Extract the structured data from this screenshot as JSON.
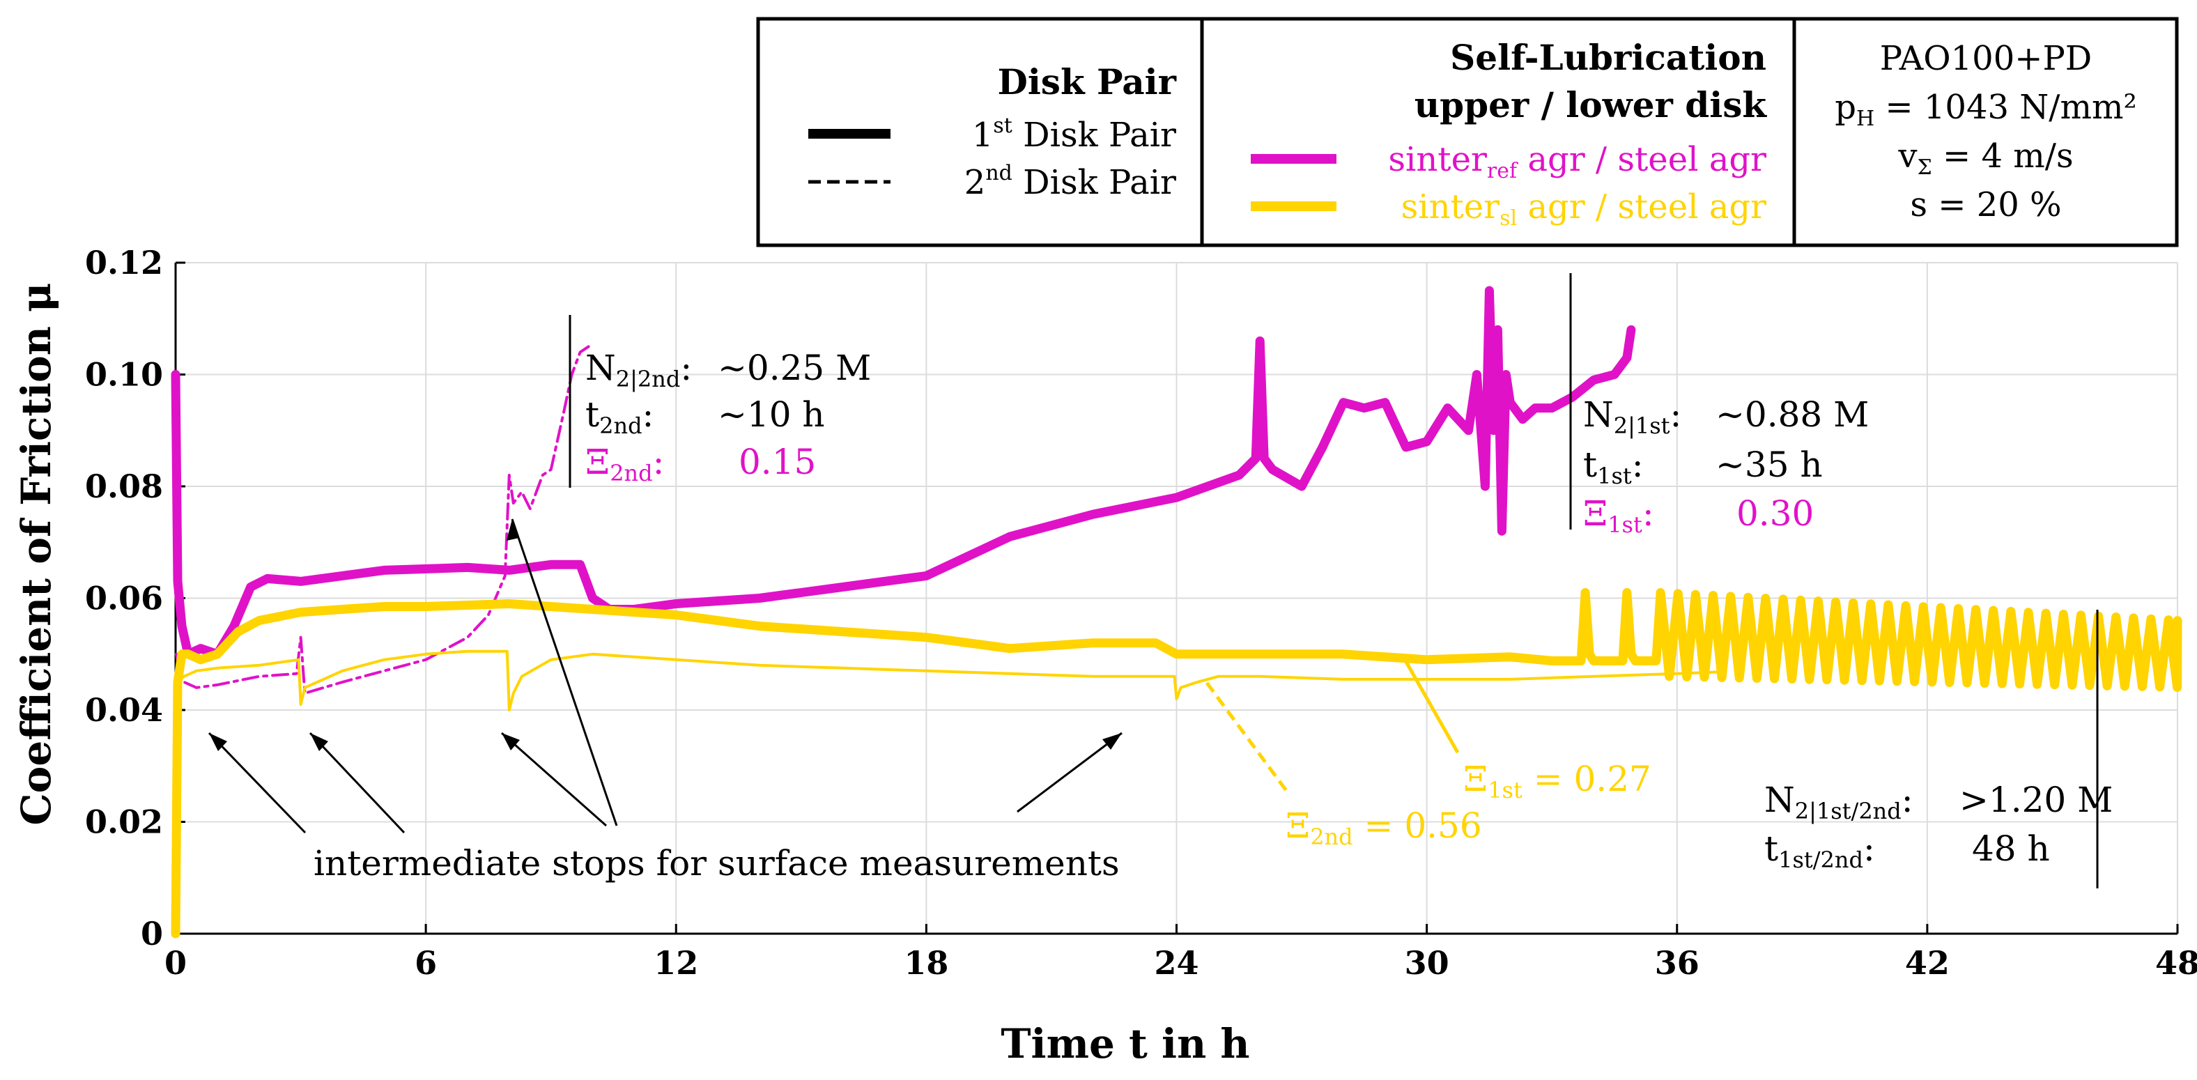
{
  "colors": {
    "sinter_ref": "#E012C8",
    "sinter_sl": "#FFD400",
    "axis": "#000000",
    "grid": "#dcdcdc"
  },
  "legend": {
    "disk_pair_title": "Disk Pair",
    "pair1": {
      "sup_num": "1",
      "sup": "st",
      "label": "Disk Pair"
    },
    "pair2": {
      "sup_num": "2",
      "sup": "nd",
      "label": "Disk Pair"
    },
    "selflub_title1": "Self-Lubrication",
    "selflub_title2": "upper / lower disk",
    "series1": {
      "a": "sinter",
      "sub": "ref",
      "b": " agr / steel agr"
    },
    "series2": {
      "a": "sinter",
      "sub": "sl",
      "b": " agr / steel agr"
    },
    "cond1": "PAO100+PD",
    "cond2": {
      "a": "p",
      "sub": "H",
      "b": " = 1043 N/mm²"
    },
    "cond3": {
      "a": "v",
      "sub": "Σ",
      "b": " = 4 m/s"
    },
    "cond4": "s = 20 %"
  },
  "chart_data": {
    "type": "line",
    "xlabel": "Time t in h",
    "ylabel": "Coefficient of Friction  μ",
    "xlim": [
      0,
      48
    ],
    "ylim": [
      0,
      0.12
    ],
    "xticks": [
      0,
      6,
      12,
      18,
      24,
      30,
      36,
      42,
      48
    ],
    "yticks": [
      0,
      0.02,
      0.04,
      0.06,
      0.08,
      0.1,
      0.12
    ],
    "ytick_labels": [
      "0",
      "0.02",
      "0.04",
      "0.06",
      "0.08",
      "0.10",
      "0.12"
    ],
    "grid": true,
    "series": [
      {
        "legend_ref": "sinter_ref agr / steel agr, 1st Disk Pair",
        "color": "sinter_ref",
        "style": "solid",
        "x": [
          0,
          0.05,
          0.15,
          0.3,
          0.6,
          1.0,
          1.4,
          1.8,
          2.2,
          3,
          5,
          7,
          8,
          9,
          9.7,
          9.8,
          10.0,
          10.4,
          11,
          12,
          14,
          16,
          18,
          20,
          22,
          24,
          25.5,
          25.9,
          26.0,
          26.1,
          26.3,
          27,
          27.5,
          28,
          28.5,
          29,
          29.5,
          30,
          30.5,
          31,
          31.2,
          31.4,
          31.5,
          31.6,
          31.7,
          31.8,
          31.9,
          32,
          32.3,
          32.6,
          33,
          33.5,
          34,
          34.5,
          34.8,
          34.9
        ],
        "y": [
          0.1,
          0.063,
          0.055,
          0.05,
          0.051,
          0.05,
          0.055,
          0.062,
          0.0635,
          0.063,
          0.065,
          0.0655,
          0.065,
          0.066,
          0.066,
          0.064,
          0.06,
          0.058,
          0.058,
          0.059,
          0.06,
          0.062,
          0.064,
          0.071,
          0.075,
          0.078,
          0.082,
          0.085,
          0.106,
          0.085,
          0.083,
          0.08,
          0.087,
          0.095,
          0.094,
          0.095,
          0.087,
          0.088,
          0.094,
          0.09,
          0.1,
          0.08,
          0.115,
          0.09,
          0.108,
          0.072,
          0.1,
          0.095,
          0.092,
          0.094,
          0.094,
          0.096,
          0.099,
          0.1,
          0.103,
          0.108
        ]
      },
      {
        "legend_ref": "sinter_ref agr / steel agr, 2nd Disk Pair",
        "color": "sinter_ref",
        "style": "dashdot",
        "x": [
          0.02,
          0.1,
          0.2,
          0.5,
          1,
          2,
          2.9,
          3.0,
          3.1,
          4,
          5,
          6,
          7,
          7.5,
          7.9,
          8.0,
          8.1,
          8.3,
          8.5,
          8.8,
          9.0,
          9.3,
          9.5,
          9.7,
          9.9
        ],
        "y": [
          0.05,
          0.047,
          0.045,
          0.044,
          0.0445,
          0.046,
          0.0465,
          0.053,
          0.043,
          0.045,
          0.047,
          0.049,
          0.053,
          0.057,
          0.064,
          0.082,
          0.077,
          0.079,
          0.076,
          0.082,
          0.083,
          0.093,
          0.1,
          0.104,
          0.105
        ]
      },
      {
        "legend_ref": "sinter_sl agr / steel agr, 1st Disk Pair",
        "color": "sinter_sl",
        "style": "solid",
        "x": [
          0,
          0.05,
          0.15,
          0.3,
          0.6,
          1.0,
          1.5,
          2,
          3,
          4,
          5,
          6,
          8,
          9,
          10,
          12,
          14,
          16,
          18,
          20,
          22,
          23.5,
          24,
          25,
          26,
          28,
          30,
          32,
          33,
          33.7,
          33.8,
          33.9,
          34.0,
          34.1,
          34.7,
          34.8,
          34.9,
          35.0
        ],
        "y": [
          0,
          0.045,
          0.05,
          0.05,
          0.049,
          0.05,
          0.054,
          0.056,
          0.0575,
          0.058,
          0.0585,
          0.0585,
          0.059,
          0.0585,
          0.058,
          0.057,
          0.055,
          0.054,
          0.053,
          0.051,
          0.052,
          0.052,
          0.05,
          0.05,
          0.05,
          0.05,
          0.049,
          0.0495,
          0.0488,
          0.0488,
          0.061,
          0.05,
          0.0488,
          0.0488,
          0.0488,
          0.061,
          0.05,
          0.0488
        ],
        "oscillation": {
          "x_start": 35.5,
          "x_end": 48.0,
          "period": 0.42,
          "y_top_start": 0.061,
          "y_top_end": 0.056,
          "y_bottom_start": 0.046,
          "y_bottom_end": 0.044
        }
      },
      {
        "legend_ref": "sinter_sl agr / steel agr, 2nd Disk Pair",
        "color": "sinter_sl",
        "style": "thin",
        "x": [
          0.05,
          0.2,
          0.5,
          1,
          2,
          2.95,
          3.0,
          3.1,
          4,
          5,
          6,
          7,
          7.95,
          8.0,
          8.1,
          8.3,
          9,
          10,
          12,
          14,
          16,
          18,
          20,
          22,
          23.95,
          24.0,
          24.1,
          24.5,
          25,
          26,
          28,
          30,
          32,
          34,
          36,
          37
        ],
        "y": [
          0.045,
          0.046,
          0.047,
          0.0475,
          0.048,
          0.049,
          0.041,
          0.044,
          0.047,
          0.049,
          0.05,
          0.0505,
          0.0505,
          0.04,
          0.043,
          0.046,
          0.049,
          0.05,
          0.049,
          0.048,
          0.0475,
          0.047,
          0.0465,
          0.046,
          0.046,
          0.042,
          0.044,
          0.045,
          0.046,
          0.046,
          0.0455,
          0.0455,
          0.0455,
          0.046,
          0.0465,
          0.0468
        ]
      }
    ],
    "annotations": {
      "box2nd": {
        "row1": {
          "a": "N",
          "sub": "2|2nd",
          "b": ":",
          "value": "~0.25 M"
        },
        "row2": {
          "a": "t",
          "sub": "2nd",
          "b": ":",
          "value": "~10 h"
        },
        "row3": {
          "a": "Ξ",
          "sub": "2nd",
          "b": ":",
          "value": "0.15"
        }
      },
      "box1st": {
        "row1": {
          "a": "N",
          "sub": "2|1st",
          "b": ":",
          "value": "~0.88 M"
        },
        "row2": {
          "a": "t",
          "sub": "1st",
          "b": ":",
          "value": "~35 h"
        },
        "row3": {
          "a": "Ξ",
          "sub": "1st",
          "b": ":",
          "value": "0.30"
        }
      },
      "box48": {
        "row1": {
          "a": "N",
          "sub": "2|1st/2nd",
          "b": ":",
          "value": ">1.20 M"
        },
        "row2": {
          "a": "t",
          "sub": "1st/2nd",
          "b": ":",
          "value": "48 h"
        }
      },
      "xi_1st_sl": {
        "a": "Ξ",
        "sub": "1st",
        "b": " = 0.27"
      },
      "xi_2nd_sl": {
        "a": "Ξ",
        "sub": "2nd",
        "b": " = 0.56"
      },
      "stops_text": "intermediate stops for surface measurements"
    }
  }
}
